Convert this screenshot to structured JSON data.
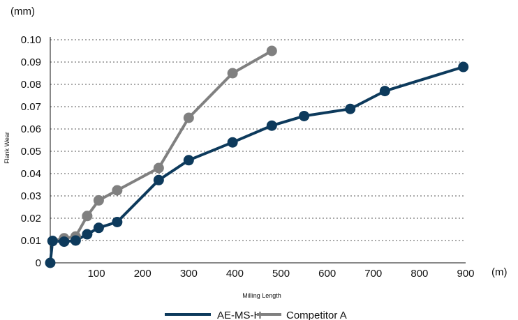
{
  "chart_data": {
    "type": "line",
    "xlabel": "Milling Length",
    "ylabel": "Flank Wear",
    "x_unit": "(m)",
    "y_unit": "(mm)",
    "xlim": [
      0,
      900
    ],
    "ylim": [
      0,
      0.1
    ],
    "x_ticks": [
      "100",
      "200",
      "300",
      "400",
      "500",
      "600",
      "700",
      "800",
      "900"
    ],
    "y_ticks": [
      "0",
      "0.01",
      "0.02",
      "0.03",
      "0.04",
      "0.05",
      "0.06",
      "0.07",
      "0.08",
      "0.09",
      "0.10"
    ],
    "grid": "horizontal-dotted",
    "legend_position": "bottom",
    "series": [
      {
        "name": "AE-MS-H",
        "color": "#0d3a5c",
        "points": [
          [
            0,
            0.0
          ],
          [
            5,
            0.0098
          ],
          [
            30,
            0.0095
          ],
          [
            55,
            0.01
          ],
          [
            80,
            0.0128
          ],
          [
            105,
            0.0157
          ],
          [
            145,
            0.0183
          ],
          [
            235,
            0.0371
          ],
          [
            300,
            0.046
          ],
          [
            395,
            0.054
          ],
          [
            480,
            0.0615
          ],
          [
            550,
            0.0658
          ],
          [
            650,
            0.069
          ],
          [
            725,
            0.077
          ],
          [
            895,
            0.0878
          ]
        ]
      },
      {
        "name": "Competitor A",
        "color": "#808080",
        "points": [
          [
            5,
            0.0098
          ],
          [
            30,
            0.011
          ],
          [
            55,
            0.0118
          ],
          [
            80,
            0.021
          ],
          [
            105,
            0.028
          ],
          [
            145,
            0.0325
          ],
          [
            235,
            0.0425
          ],
          [
            300,
            0.065
          ],
          [
            395,
            0.085
          ],
          [
            480,
            0.095
          ]
        ]
      }
    ]
  }
}
